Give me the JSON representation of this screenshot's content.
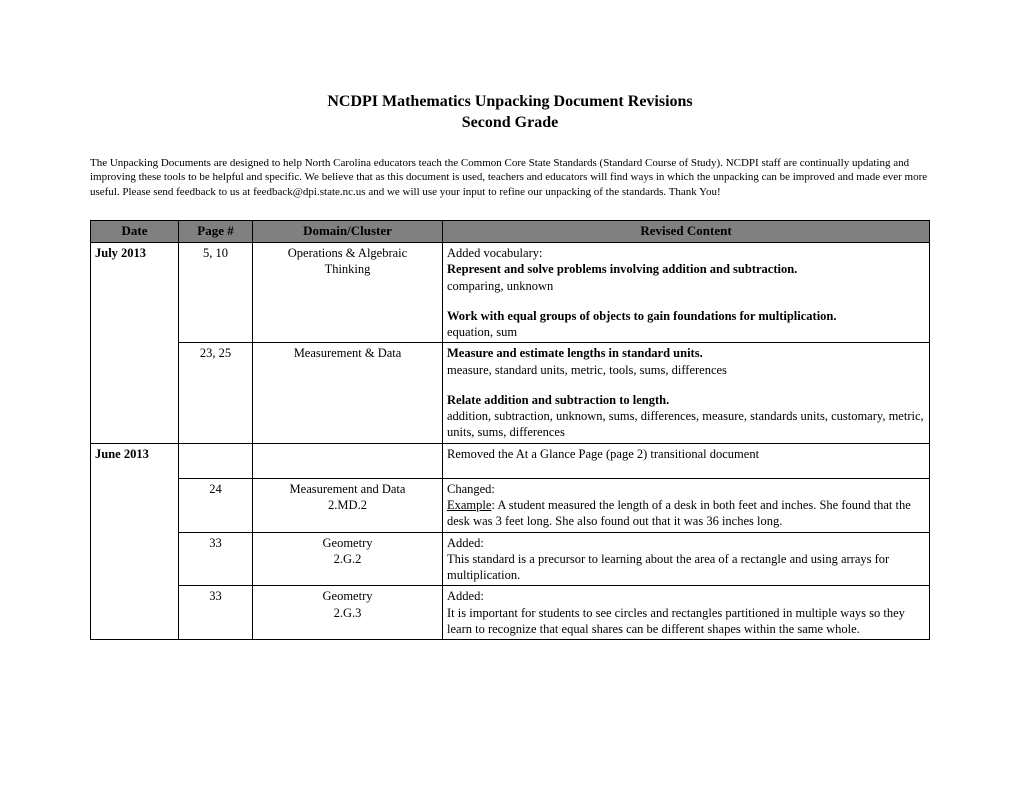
{
  "title_line1": "NCDPI Mathematics Unpacking Document Revisions",
  "title_line2": "Second Grade",
  "intro": "The Unpacking Documents are designed to help North Carolina educators teach the Common Core State Standards (Standard Course of Study). NCDPI staff are continually updating and improving these tools to be helpful and specific.  We believe that as this document is used, teachers and educators will find ways in which the unpacking can be improved and made ever more useful. Please send feedback to us at feedback@dpi.state.nc.us and we will use your input to refine our unpacking of the standards. Thank You!",
  "headers": {
    "date": "Date",
    "page": "Page #",
    "domain": "Domain/Cluster",
    "content": "Revised Content"
  },
  "rows": {
    "r1": {
      "date": "July 2013",
      "page": "5, 10",
      "domain1": "Operations & Algebraic",
      "domain2": "Thinking",
      "c_added": "Added vocabulary:",
      "c_b1": "Represent and solve problems involving addition and subtraction.",
      "c_t1": "comparing, unknown",
      "c_b2": "Work with equal groups of objects to gain foundations for multiplication.",
      "c_t2": "equation, sum"
    },
    "r2": {
      "page": "23, 25",
      "domain": "Measurement & Data",
      "c_b1": "Measure and estimate lengths in standard units.",
      "c_t1": "measure, standard units, metric, tools, sums, differences",
      "c_b2": "Relate addition and subtraction to length.",
      "c_t2": "addition, subtraction, unknown, sums, differences, measure, standards units, customary, metric, units, sums, differences"
    },
    "r3": {
      "date": "June 2013",
      "content": "Removed the At a Glance Page (page 2) transitional document"
    },
    "r4": {
      "page": "24",
      "domain1": "Measurement and Data",
      "domain2": "2.MD.2",
      "c_lead": "Changed:",
      "c_ex_label": "Example",
      "c_ex_rest": ":  A student measured the length of a desk in both feet and inches.  She found that the desk was 3 feet long.  She also found out that it was 36 inches long."
    },
    "r5": {
      "page": "33",
      "domain1": "Geometry",
      "domain2": "2.G.2",
      "c_lead": "Added:",
      "c_body": "This standard is a precursor to learning about the area of a rectangle and using arrays for multiplication."
    },
    "r6": {
      "page": "33",
      "domain1": "Geometry",
      "domain2": "2.G.3",
      "c_lead": "Added:",
      "c_body": "It is important for students to see circles and rectangles partitioned in multiple ways so they learn to recognize that equal shares can be different shapes within the same whole."
    }
  }
}
